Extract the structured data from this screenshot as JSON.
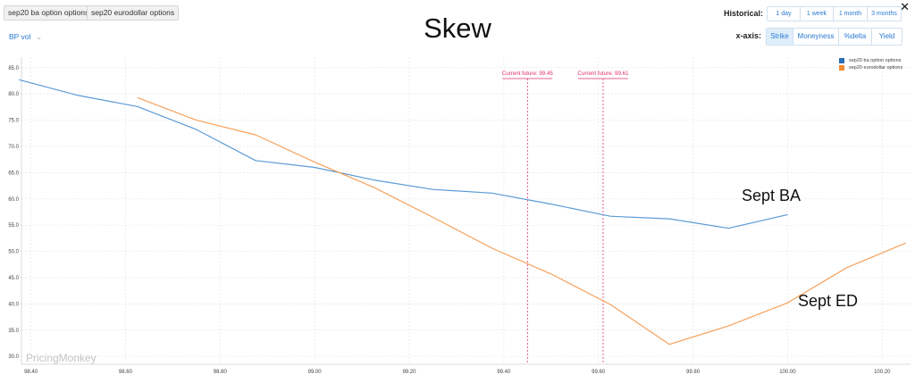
{
  "toolbar": {
    "tags": [
      "sep20 ba option options",
      "sep20 eurodollar options"
    ],
    "metric_dropdown": "BP vol",
    "historical_label": "Historical:",
    "historical_options": [
      "1 day",
      "1 week",
      "1 month",
      "3 months"
    ],
    "xaxis_label": "x-axis:",
    "xaxis_options": [
      "Strike",
      "Moneyness",
      "%delta",
      "Yield"
    ],
    "xaxis_selected": "Strike"
  },
  "watermark": "PricingMonkey",
  "chart_data": {
    "type": "line",
    "title": "Skew",
    "xlim": [
      98.38,
      100.26
    ],
    "ylim": [
      28.5,
      87.0
    ],
    "x_ticks": [
      "98.40",
      "98.60",
      "98.80",
      "99.00",
      "99.20",
      "99.40",
      "99.60",
      "99.80",
      "100.00",
      "100.20"
    ],
    "y_ticks": [
      "30.0",
      "35.0",
      "40.0",
      "45.0",
      "50.0",
      "55.0",
      "60.0",
      "65.0",
      "70.0",
      "75.0",
      "80.0",
      "85.0"
    ],
    "grid": true,
    "legend_position": "top-right",
    "series": [
      {
        "name": "sep20 ba option options",
        "color": "#5b9bd5",
        "x": [
          98.375,
          98.5,
          98.625,
          98.75,
          98.875,
          99.0,
          99.125,
          99.25,
          99.375,
          99.5,
          99.625,
          99.75,
          99.875,
          100.0
        ],
        "y": [
          82.7,
          79.7,
          77.6,
          73.2,
          67.3,
          66.0,
          63.6,
          61.8,
          61.1,
          59.0,
          56.7,
          56.2,
          54.4,
          57.0
        ]
      },
      {
        "name": "sep20 eurodollar options",
        "color": "#f5a15c",
        "x": [
          98.625,
          98.75,
          98.875,
          99.0,
          99.125,
          99.25,
          99.375,
          99.5,
          99.625,
          99.75,
          99.875,
          100.0,
          100.125,
          100.25
        ],
        "y": [
          79.3,
          75.0,
          72.2,
          67.0,
          62.2,
          56.5,
          50.6,
          45.7,
          39.9,
          32.3,
          35.8,
          40.2,
          46.9,
          51.6
        ]
      }
    ],
    "reference_lines": [
      {
        "x": 99.45,
        "label": "Current future: 99.45"
      },
      {
        "x": 99.61,
        "label": "Current future: 99.61"
      }
    ],
    "annotations": [
      {
        "text": "Sept BA"
      },
      {
        "text": "Sept ED"
      }
    ]
  },
  "colors": {
    "accent": "#2a7bd3",
    "future_line": "#e0306a",
    "grid": "#e6e6e6"
  }
}
